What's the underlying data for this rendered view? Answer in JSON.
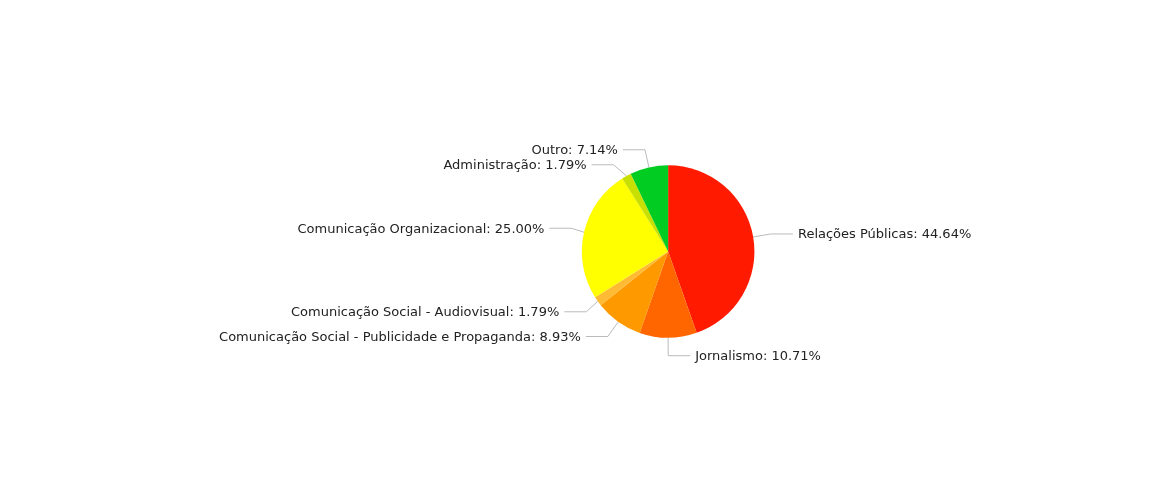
{
  "chart_data": {
    "type": "pie",
    "categories": [
      "Relações Públicas",
      "Jornalismo",
      "Comunicação Social - Publicidade e Propaganda",
      "Comunicação Social - Audiovisual",
      "Comunicação Organizacional",
      "Administração",
      "Outro"
    ],
    "values": [
      44.64,
      10.71,
      8.93,
      1.79,
      25.0,
      1.79,
      7.14
    ],
    "value_labels": [
      "44.64%",
      "10.71%",
      "8.93%",
      "1.79%",
      "25.00%",
      "1.79%",
      "7.14%"
    ],
    "colors": [
      "#ff1a00",
      "#ff6600",
      "#ff9900",
      "#ffbb33",
      "#ffff00",
      "#c8e000",
      "#00cc22"
    ],
    "legend": false
  }
}
